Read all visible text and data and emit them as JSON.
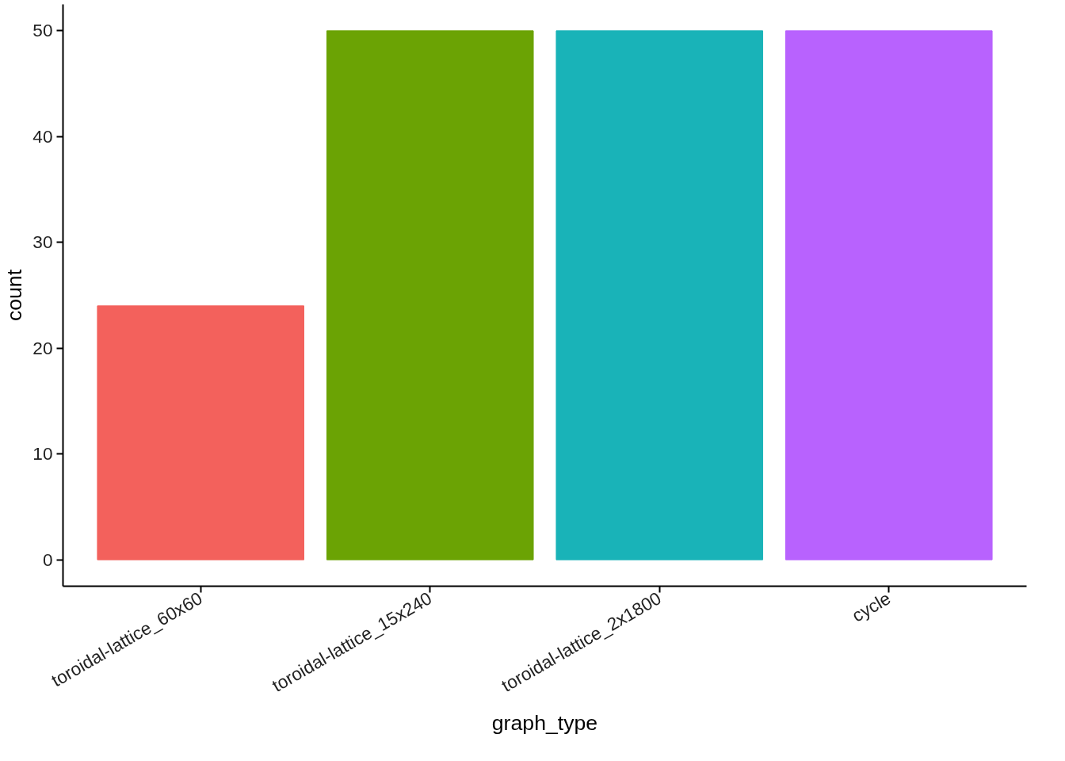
{
  "chart_data": {
    "type": "bar",
    "xlabel": "graph_type",
    "ylabel": "count",
    "categories": [
      "toroidal-lattice_60x60",
      "toroidal-lattice_15x240",
      "toroidal-lattice_2x1800",
      "cycle"
    ],
    "values": [
      24,
      50,
      50,
      50
    ],
    "colors": [
      "#f3615c",
      "#6ba304",
      "#19b3b8",
      "#b862fe"
    ],
    "ylim": [
      -2.5,
      52.5
    ],
    "yticks": [
      0,
      10,
      20,
      30,
      40,
      50
    ],
    "grid": false
  }
}
